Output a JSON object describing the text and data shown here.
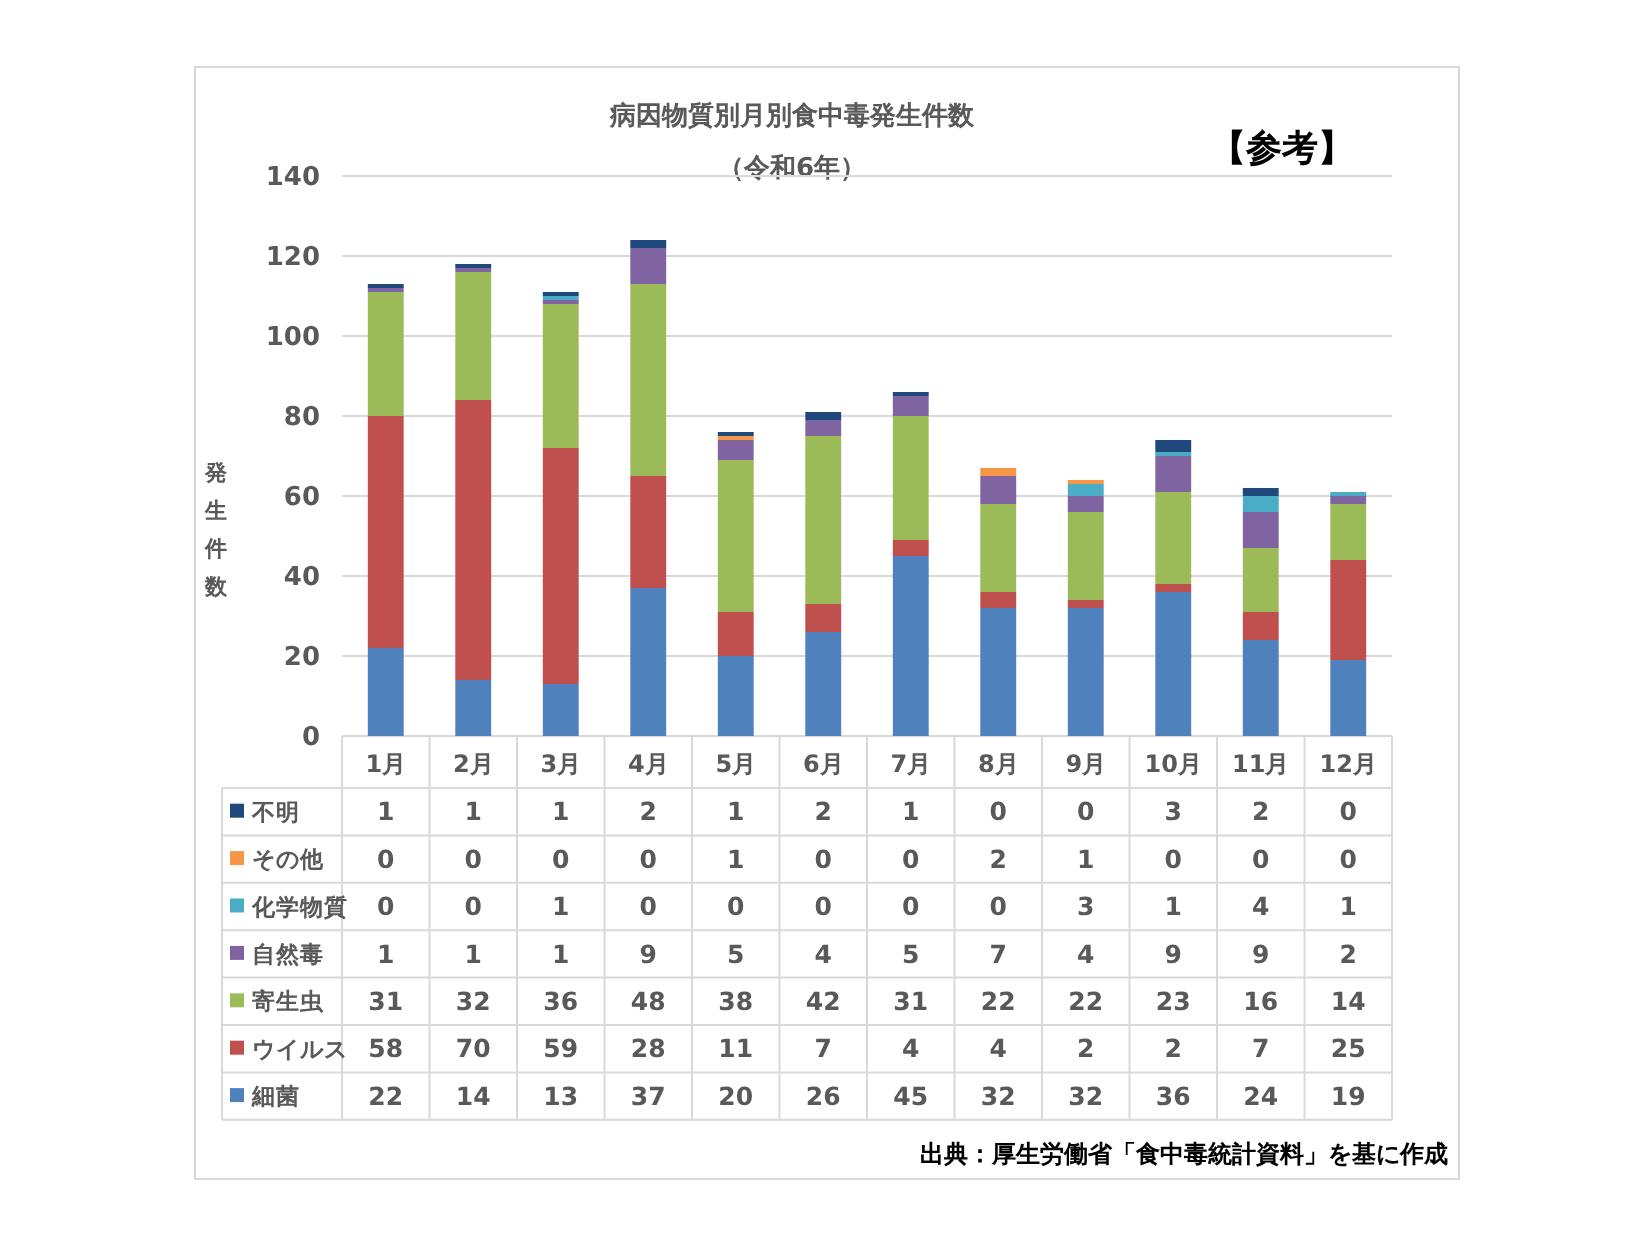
{
  "chart_data": {
    "type": "bar",
    "title": "病因物質別月別食中毒発生件数",
    "subtitle": "（令和6年）",
    "ylabel": "発生件数",
    "annotations": [
      "【参考】",
      "出典：厚生労働省「食中毒統計資料」を基に作成"
    ],
    "categories": [
      "1月",
      "2月",
      "3月",
      "4月",
      "5月",
      "6月",
      "7月",
      "8月",
      "9月",
      "10月",
      "11月",
      "12月"
    ],
    "stacked": true,
    "series": [
      {
        "name": "細菌",
        "color": "#4f81bd",
        "values": [
          22,
          14,
          13,
          37,
          20,
          26,
          45,
          32,
          32,
          36,
          24,
          19
        ]
      },
      {
        "name": "ウイルス",
        "color": "#c0504d",
        "values": [
          58,
          70,
          59,
          28,
          11,
          7,
          4,
          4,
          2,
          2,
          7,
          25
        ]
      },
      {
        "name": "寄生虫",
        "color": "#9bbb59",
        "values": [
          31,
          32,
          36,
          48,
          38,
          42,
          31,
          22,
          22,
          23,
          16,
          14
        ]
      },
      {
        "name": "自然毒",
        "color": "#8064a2",
        "values": [
          1,
          1,
          1,
          9,
          5,
          4,
          5,
          7,
          4,
          9,
          9,
          2
        ]
      },
      {
        "name": "化学物質",
        "color": "#4bacc6",
        "values": [
          0,
          0,
          1,
          0,
          0,
          0,
          0,
          0,
          3,
          1,
          4,
          1
        ]
      },
      {
        "name": "その他",
        "color": "#f79646",
        "values": [
          0,
          0,
          0,
          0,
          1,
          0,
          0,
          2,
          1,
          0,
          0,
          0
        ]
      },
      {
        "name": "不明",
        "color": "#1f497d",
        "values": [
          1,
          1,
          1,
          2,
          1,
          2,
          1,
          0,
          0,
          3,
          2,
          0
        ]
      }
    ],
    "ylim": [
      0,
      140
    ],
    "yticks": [
      0,
      20,
      40,
      60,
      80,
      100,
      120,
      140
    ],
    "grid": "y",
    "legend": "bottom",
    "data_labels": true
  }
}
